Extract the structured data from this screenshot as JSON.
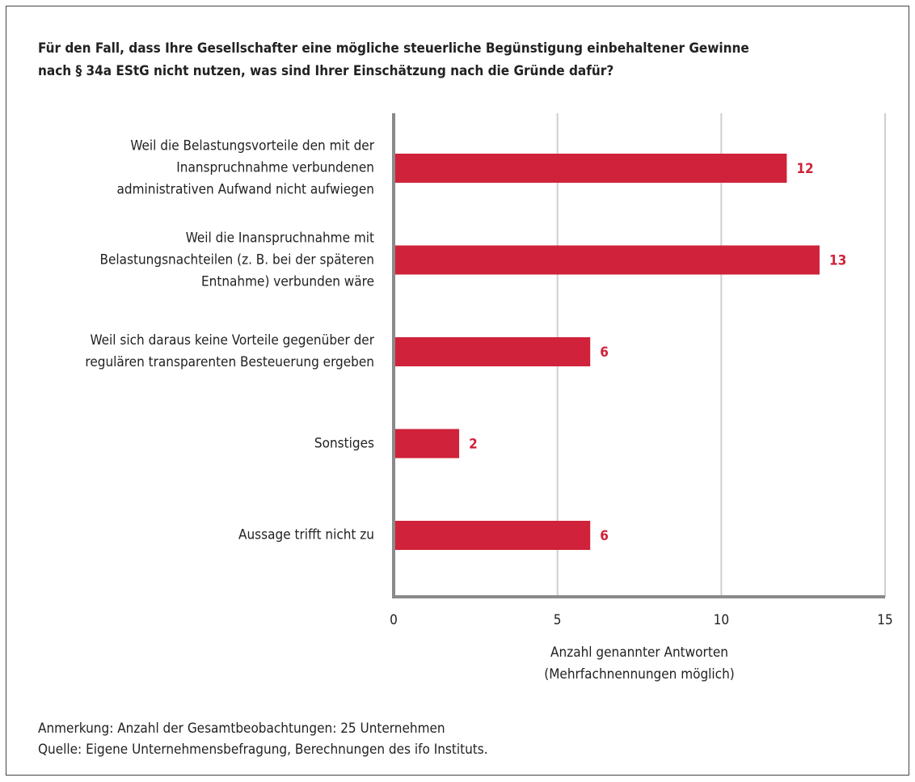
{
  "chart_data": {
    "type": "bar",
    "orientation": "horizontal",
    "title": "Für den Fall, dass Ihre Gesellschafter eine mögliche steuerliche Begünstigung einbehaltener Gewinne\nnach § 34a EStG nicht nutzen, was sind Ihrer Einschätzung nach die Gründe dafür?",
    "categories": [
      "Weil die Belastungsvorteile den mit der\nInanspruchnahme verbundenen\nadministrativen Aufwand nicht aufwiegen",
      "Weil die Inanspruchnahme mit\nBelastungsnachteilen (z. B. bei der späteren\nEntnahme) verbunden wäre",
      "Weil sich daraus keine Vorteile gegenüber der\nregulären transparenten Besteuerung ergeben",
      "Sonstiges",
      "Aussage trifft nicht zu"
    ],
    "values": [
      12,
      13,
      6,
      2,
      6
    ],
    "color": "#d0223a",
    "xlim": [
      0,
      15
    ],
    "xticks": [
      0,
      5,
      10,
      15
    ],
    "grid": true,
    "x_label": "Anzahl genannter Antworten\n(Mehrfachnennungen möglich)",
    "note": "Anmerkung: Anzahl der Gesamtbeobachtungen: 25 Unternehmen",
    "source": "Quelle: Eigene Unternehmensbefragung, Berechnungen des ifo Instituts."
  }
}
